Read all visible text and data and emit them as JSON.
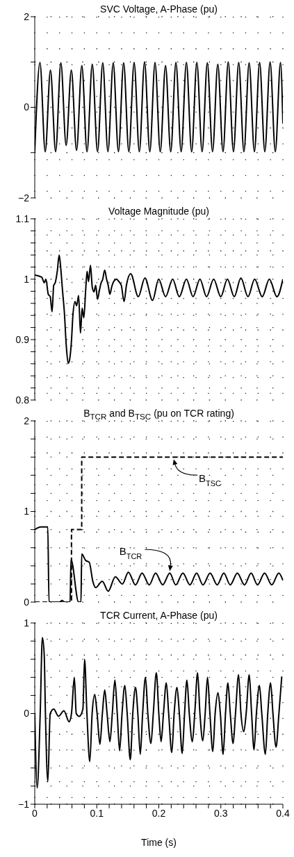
{
  "chart_data": [
    {
      "type": "line",
      "title": "SVC Voltage, A-Phase (pu)",
      "xlim": [
        0,
        0.4
      ],
      "xticks": [
        0,
        {
          "value": 0.02,
          "label": null
        },
        {
          "value": 0.04,
          "label": null
        },
        {
          "value": 0.06,
          "label": null
        },
        {
          "value": 0.08,
          "label": null
        },
        0.1,
        {
          "value": 0.12,
          "label": null
        },
        {
          "value": 0.14,
          "label": null
        },
        {
          "value": 0.16,
          "label": null
        },
        {
          "value": 0.18,
          "label": null
        },
        0.2,
        {
          "value": 0.22,
          "label": null
        },
        {
          "value": 0.24,
          "label": null
        },
        {
          "value": 0.26,
          "label": null
        },
        {
          "value": 0.28,
          "label": null
        },
        0.3,
        {
          "value": 0.32,
          "label": null
        },
        {
          "value": 0.34,
          "label": null
        },
        {
          "value": 0.36,
          "label": null
        },
        {
          "value": 0.38,
          "label": null
        },
        0.4
      ],
      "ylim": [
        -2,
        2
      ],
      "yticks": [
        {
          "value": -2,
          "label": "−2"
        },
        {
          "value": -1,
          "label": null
        },
        0,
        {
          "value": 1,
          "label": null
        },
        2
      ],
      "grid": true,
      "marker": "none",
      "tick_labels": "y",
      "x": [
        0,
        0.0084,
        0.0169,
        0.0253,
        0.0337,
        0.0421,
        0.0506,
        0.059,
        0.0674,
        0.0759,
        0.0843,
        0.0927,
        0.1012,
        0.1096,
        0.118,
        0.1265,
        0.1349,
        0.1433,
        0.1517,
        0.1602,
        0.1686,
        0.177,
        0.1855,
        0.1939,
        0.2023,
        0.2108,
        0.2192,
        0.2276,
        0.236,
        0.2445,
        0.2529,
        0.2613,
        0.2698,
        0.2782,
        0.2866,
        0.2951,
        0.3035,
        0.3119,
        0.3203,
        0.3288,
        0.3372,
        0.3456,
        0.3541,
        0.3625,
        0.3709,
        0.3794,
        0.3878,
        0.3962,
        0.4
      ],
      "series": [
        {
          "color": "#000000",
          "line_style": "solid",
          "values": [
            -0.98,
            0.99,
            -0.98,
            0.82,
            -0.98,
            0.98,
            -0.84,
            0.82,
            -0.95,
            0.92,
            -0.98,
            0.95,
            -0.98,
            0.98,
            -0.98,
            0.98,
            -0.98,
            0.98,
            -0.98,
            0.99,
            -0.98,
            1.0,
            -0.98,
            0.99,
            -0.98,
            0.92,
            -0.98,
            0.99,
            -0.98,
            0.99,
            -0.98,
            0.99,
            -0.98,
            0.98,
            -0.98,
            0.95,
            -0.98,
            1.0,
            -0.98,
            0.99,
            -0.98,
            0.98,
            -0.98,
            0.99,
            -0.98,
            1.0,
            -0.98,
            0.99,
            -0.36
          ]
        }
      ]
    },
    {
      "type": "line",
      "title": "Voltage Magnitude (pu)",
      "xlim": [
        0,
        0.4
      ],
      "xticks": [
        0,
        {
          "value": 0.02,
          "label": null
        },
        {
          "value": 0.04,
          "label": null
        },
        {
          "value": 0.06,
          "label": null
        },
        {
          "value": 0.08,
          "label": null
        },
        0.1,
        {
          "value": 0.12,
          "label": null
        },
        {
          "value": 0.14,
          "label": null
        },
        {
          "value": 0.16,
          "label": null
        },
        {
          "value": 0.18,
          "label": null
        },
        0.2,
        {
          "value": 0.22,
          "label": null
        },
        {
          "value": 0.24,
          "label": null
        },
        {
          "value": 0.26,
          "label": null
        },
        {
          "value": 0.28,
          "label": null
        },
        0.3,
        {
          "value": 0.32,
          "label": null
        },
        {
          "value": 0.34,
          "label": null
        },
        {
          "value": 0.36,
          "label": null
        },
        {
          "value": 0.38,
          "label": null
        },
        0.4
      ],
      "ylim": [
        0.8,
        1.1
      ],
      "yticks": [
        0.8,
        {
          "value": 0.82,
          "label": null
        },
        {
          "value": 0.84,
          "label": null
        },
        {
          "value": 0.86,
          "label": null
        },
        {
          "value": 0.88,
          "label": null
        },
        0.9,
        {
          "value": 0.92,
          "label": null
        },
        {
          "value": 0.94,
          "label": null
        },
        {
          "value": 0.96,
          "label": null
        },
        {
          "value": 0.98,
          "label": null
        },
        1,
        {
          "value": 1.02,
          "label": null
        },
        {
          "value": 1.04,
          "label": null
        },
        {
          "value": 1.06,
          "label": null
        },
        {
          "value": 1.08,
          "label": null
        },
        1.1
      ],
      "grid": true,
      "marker": "none",
      "tick_labels": "y",
      "x": [
        0,
        0.0115,
        0.0153,
        0.018,
        0.0218,
        0.025,
        0.0279,
        0.0306,
        0.033,
        0.0363,
        0.0394,
        0.042,
        0.0447,
        0.0478,
        0.0508,
        0.0539,
        0.0562,
        0.0592,
        0.0615,
        0.065,
        0.0676,
        0.0707,
        0.0737,
        0.0764,
        0.0791,
        0.0821,
        0.0844,
        0.0867,
        0.0898,
        0.0928,
        0.0955,
        0.0982,
        0.1012,
        0.1043,
        0.107,
        0.1096,
        0.1127,
        0.1158,
        0.1184,
        0.1211,
        0.1242,
        0.1272,
        0.1318,
        0.1356,
        0.1395,
        0.144,
        0.1478,
        0.1547,
        0.1669,
        0.1776,
        0.1899,
        0.1998,
        0.2109,
        0.2223,
        0.233,
        0.2445,
        0.2552,
        0.2663,
        0.277,
        0.2884,
        0.2999,
        0.3106,
        0.3216,
        0.3323,
        0.3438,
        0.3545,
        0.3667,
        0.3782,
        0.3904,
        0.4
      ],
      "series": [
        {
          "color": "#000000",
          "line_style": "solid",
          "values": [
            1.007,
            1.003,
            0.994,
            1.0,
            0.975,
            0.971,
            0.946,
            0.99,
            0.994,
            1.013,
            1.04,
            1.017,
            0.982,
            0.944,
            0.89,
            0.861,
            0.867,
            0.898,
            0.94,
            0.963,
            0.956,
            0.973,
            0.911,
            0.952,
            0.936,
            0.982,
            1.013,
            0.996,
            1.023,
            0.986,
            0.979,
            0.99,
            0.967,
            0.982,
            0.994,
            1.0,
            1.015,
            1.0,
            0.99,
            0.975,
            0.988,
            0.996,
            1.0,
            0.996,
            0.99,
            0.963,
            0.99,
            1.009,
            0.971,
            1.002,
            0.965,
            1.0,
            0.971,
            1.0,
            0.971,
            1.0,
            0.971,
            1.0,
            0.971,
            1.0,
            0.971,
            1.0,
            0.971,
            1.002,
            0.971,
            1.0,
            0.971,
            1.0,
            0.971,
            1.0
          ]
        }
      ]
    },
    {
      "type": "line",
      "title": "B$_{TCR}$ and B$_{TSC}$ (pu on TCR rating)",
      "xlim": [
        0,
        0.4
      ],
      "xticks": [
        0,
        {
          "value": 0.02,
          "label": null
        },
        {
          "value": 0.04,
          "label": null
        },
        {
          "value": 0.06,
          "label": null
        },
        {
          "value": 0.08,
          "label": null
        },
        0.1,
        {
          "value": 0.12,
          "label": null
        },
        {
          "value": 0.14,
          "label": null
        },
        {
          "value": 0.16,
          "label": null
        },
        {
          "value": 0.18,
          "label": null
        },
        0.2,
        {
          "value": 0.22,
          "label": null
        },
        {
          "value": 0.24,
          "label": null
        },
        {
          "value": 0.26,
          "label": null
        },
        {
          "value": 0.28,
          "label": null
        },
        0.3,
        {
          "value": 0.32,
          "label": null
        },
        {
          "value": 0.34,
          "label": null
        },
        {
          "value": 0.36,
          "label": null
        },
        {
          "value": 0.38,
          "label": null
        },
        0.4
      ],
      "ylim": [
        0,
        2
      ],
      "yticks": [
        0,
        {
          "value": 0.2,
          "label": null
        },
        {
          "value": 0.4,
          "label": null
        },
        {
          "value": 0.6,
          "label": null
        },
        {
          "value": 0.8,
          "label": null
        },
        1,
        {
          "value": 1.2,
          "label": null
        },
        {
          "value": 1.4,
          "label": null
        },
        {
          "value": 1.6,
          "label": null
        },
        {
          "value": 1.8,
          "label": null
        },
        2
      ],
      "grid": true,
      "marker": "none",
      "tick_labels": "y",
      "series": [
        {
          "type": "step",
          "color": "#000000",
          "line_style": "dashed",
          "x": [
            0,
            0.0592,
            0.0757,
            0.4
          ],
          "values": [
            0,
            0.8,
            1.6,
            1.6
          ]
        },
        {
          "color": "#000000",
          "line_style": "solid",
          "x": [
            0,
            0.0096,
            0.021,
            0.023,
            0.04,
            0.044,
            0.048,
            0.057,
            0.0584,
            0.0707,
            0.0745,
            0.0757,
            0.0821,
            0.0879,
            0.0936,
            0.0982,
            0.1089,
            0.1184,
            0.1299,
            0.1413,
            0.1509,
            0.1624,
            0.173,
            0.1845,
            0.1948,
            0.2063,
            0.2177,
            0.2273,
            0.2388,
            0.2502,
            0.2609,
            0.2712,
            0.2827,
            0.2941,
            0.3048,
            0.3152,
            0.3266,
            0.3381,
            0.3488,
            0.3591,
            0.3705,
            0.382,
            0.3935,
            0.4
          ],
          "values": [
            0.8,
            0.83,
            0.83,
            0,
            0,
            0.02,
            0,
            0,
            0.47,
            0,
            0,
            0.53,
            0.46,
            0.44,
            0.23,
            0.16,
            0.23,
            0.12,
            0.28,
            0.2,
            0.33,
            0.19,
            0.32,
            0.19,
            0.32,
            0.19,
            0.32,
            0.19,
            0.32,
            0.19,
            0.32,
            0.19,
            0.32,
            0.19,
            0.32,
            0.19,
            0.32,
            0.19,
            0.32,
            0.19,
            0.32,
            0.19,
            0.32,
            0.24
          ]
        }
      ],
      "annotations": [
        {
          "text": "B$_{TSC}$",
          "x": 0.224,
          "y": 1.6
        },
        {
          "text": "B$_{TCR}$",
          "x": 0.2177,
          "y": 0.32
        }
      ]
    },
    {
      "type": "line",
      "title": "TCR Current, A-Phase (pu)",
      "xlabel": "Time (s)",
      "xlim": [
        0,
        0.4
      ],
      "xticks": [
        0,
        {
          "value": 0.02,
          "label": null
        },
        {
          "value": 0.04,
          "label": null
        },
        {
          "value": 0.06,
          "label": null
        },
        {
          "value": 0.08,
          "label": null
        },
        0.1,
        {
          "value": 0.12,
          "label": null
        },
        {
          "value": 0.14,
          "label": null
        },
        {
          "value": 0.16,
          "label": null
        },
        {
          "value": 0.18,
          "label": null
        },
        0.2,
        {
          "value": 0.22,
          "label": null
        },
        {
          "value": 0.24,
          "label": null
        },
        {
          "value": 0.26,
          "label": null
        },
        {
          "value": 0.28,
          "label": null
        },
        0.3,
        {
          "value": 0.32,
          "label": null
        },
        {
          "value": 0.34,
          "label": null
        },
        {
          "value": 0.36,
          "label": null
        },
        {
          "value": 0.38,
          "label": null
        },
        0.4
      ],
      "ylim": [
        -1,
        1
      ],
      "yticks": [
        {
          "value": -1,
          "label": "−1"
        },
        {
          "value": -0.8,
          "label": null
        },
        {
          "value": -0.6,
          "label": null
        },
        {
          "value": -0.4,
          "label": null
        },
        {
          "value": -0.2,
          "label": null
        },
        0,
        {
          "value": 0.2,
          "label": null
        },
        {
          "value": 0.4,
          "label": null
        },
        {
          "value": 0.6,
          "label": null
        },
        {
          "value": 0.8,
          "label": null
        },
        1
      ],
      "grid": true,
      "marker": "none",
      "x": [
        0,
        0.0039,
        0.0088,
        0.0123,
        0.0153,
        0.0172,
        0.0211,
        0.0249,
        0.0306,
        0.0382,
        0.047,
        0.0554,
        0.0592,
        0.0638,
        0.0669,
        0.0718,
        0.0776,
        0.0803,
        0.0841,
        0.0887,
        0.0925,
        0.0967,
        0.1005,
        0.1051,
        0.109,
        0.1128,
        0.1166,
        0.1212,
        0.125,
        0.1292,
        0.133,
        0.1368,
        0.1407,
        0.1452,
        0.149,
        0.154,
        0.158,
        0.1624,
        0.1662,
        0.1701,
        0.1739,
        0.1785,
        0.1823,
        0.1873,
        0.1911,
        0.196,
        0.2,
        0.2037,
        0.2075,
        0.2121,
        0.2159,
        0.2209,
        0.2247,
        0.2293,
        0.2331,
        0.2377,
        0.2415,
        0.2453,
        0.2491,
        0.2541,
        0.2579,
        0.2625,
        0.2663,
        0.2709,
        0.2747,
        0.2785,
        0.2824,
        0.287,
        0.2908,
        0.2954,
        0.2992,
        0.3037,
        0.3075,
        0.3114,
        0.3152,
        0.3198,
        0.3236,
        0.3286,
        0.3324,
        0.337,
        0.3408,
        0.3458,
        0.3496,
        0.3535,
        0.3573,
        0.3622,
        0.366,
        0.3718,
        0.3756,
        0.3802,
        0.384,
        0.389,
        0.3936,
        0.3982
      ],
      "series": [
        {
          "color": "#000000",
          "line_style": "solid",
          "values": [
            0,
            -0.82,
            0,
            0.84,
            0.64,
            0,
            -0.75,
            0,
            0.05,
            -0.03,
            0.03,
            -0.09,
            0,
            0.4,
            0,
            -0.03,
            0.05,
            0.6,
            0,
            -0.53,
            0,
            0.21,
            0,
            -0.34,
            0,
            0.26,
            0,
            -0.31,
            0,
            0.37,
            0,
            -0.41,
            0,
            0.31,
            0,
            -0.51,
            0,
            0.29,
            0,
            -0.45,
            0,
            0.4,
            0,
            -0.33,
            0,
            0.45,
            0,
            -0.31,
            0,
            0.34,
            0,
            -0.43,
            0,
            0.29,
            0,
            -0.44,
            0,
            0.37,
            0,
            -0.31,
            0,
            0.45,
            0,
            -0.3,
            0,
            0.4,
            0,
            -0.42,
            0,
            0.23,
            0,
            -0.45,
            0,
            0.34,
            0,
            -0.33,
            0,
            0.43,
            0,
            -0.2,
            0,
            0.43,
            0,
            -0.4,
            0,
            0.31,
            0,
            -0.45,
            0,
            0.34,
            0,
            -0.37,
            0,
            0.41
          ]
        }
      ]
    }
  ]
}
